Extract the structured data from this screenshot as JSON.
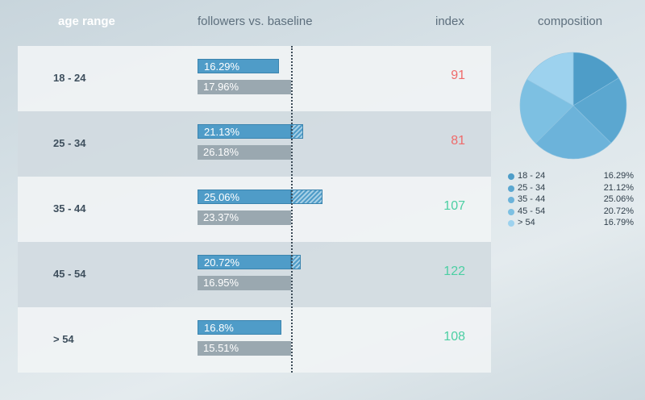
{
  "headers": {
    "age_range": "age range",
    "followers_vs_baseline": "followers vs. baseline",
    "index": "index",
    "composition": "composition"
  },
  "colors": {
    "follower_bar": "#4f9cc8",
    "baseline_bar": "#9aa8b0",
    "index_low": "#ef6a6a",
    "index_high": "#4ccfa3"
  },
  "baseline_reference_percent": 18.7,
  "rows": [
    {
      "age": "18 - 24",
      "followers": 16.29,
      "followers_label": "16.29%",
      "baseline": 17.96,
      "baseline_label": "17.96%",
      "index": "91",
      "index_status": "below"
    },
    {
      "age": "25 - 34",
      "followers": 21.13,
      "followers_label": "21.13%",
      "baseline": 26.18,
      "baseline_label": "26.18%",
      "index": "81",
      "index_status": "below"
    },
    {
      "age": "35 - 44",
      "followers": 25.06,
      "followers_label": "25.06%",
      "baseline": 23.37,
      "baseline_label": "23.37%",
      "index": "107",
      "index_status": "above"
    },
    {
      "age": "45 - 54",
      "followers": 20.72,
      "followers_label": "20.72%",
      "baseline": 16.95,
      "baseline_label": "16.95%",
      "index": "122",
      "index_status": "above"
    },
    {
      "age": "> 54",
      "followers": 16.8,
      "followers_label": "16.8%",
      "baseline": 15.51,
      "baseline_label": "15.51%",
      "index": "108",
      "index_status": "above"
    }
  ],
  "composition": [
    {
      "label": "18 - 24",
      "value": 16.29,
      "value_label": "16.29%",
      "color": "#4e9dc8"
    },
    {
      "label": "25 - 34",
      "value": 21.12,
      "value_label": "21.12%",
      "color": "#5ba7d0"
    },
    {
      "label": "35 - 44",
      "value": 25.06,
      "value_label": "25.06%",
      "color": "#6cb3da"
    },
    {
      "label": "45 - 54",
      "value": 20.72,
      "value_label": "20.72%",
      "color": "#7dc0e2"
    },
    {
      "label": "> 54",
      "value": 16.79,
      "value_label": "16.79%",
      "color": "#9dd2ee"
    }
  ]
}
